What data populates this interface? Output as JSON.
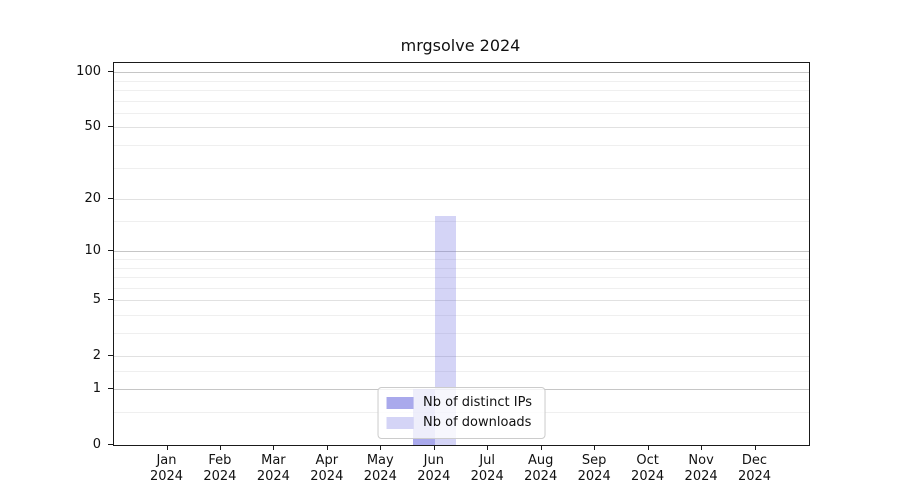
{
  "title": "mrgsolve 2024",
  "chart_data": {
    "type": "bar",
    "title": "mrgsolve 2024",
    "scale": "log1p",
    "grid": true,
    "legend_position": "lower center",
    "categories": [
      "Jan",
      "Feb",
      "Mar",
      "Apr",
      "May",
      "Jun",
      "Jul",
      "Aug",
      "Sep",
      "Oct",
      "Nov",
      "Dec"
    ],
    "year": "2024",
    "series": [
      {
        "name": "Nb of distinct IPs",
        "color": "rgba(102,102,221,0.56)",
        "values": [
          0,
          0,
          0,
          0,
          0,
          1,
          0,
          0,
          0,
          0,
          0,
          0
        ]
      },
      {
        "name": "Nb of downloads",
        "color": "rgba(102,102,221,0.28)",
        "values": [
          0,
          0,
          0,
          0,
          0,
          16,
          0,
          0,
          0,
          0,
          0,
          0
        ]
      }
    ],
    "yticks": [
      0,
      1,
      2,
      5,
      10,
      20,
      50,
      100
    ],
    "decade_lines": [
      1,
      10,
      100
    ],
    "labeled_lines": [
      2,
      5,
      20,
      50
    ],
    "minor_lines": [
      0.5,
      1.5,
      3,
      4,
      6,
      7,
      8,
      9,
      15,
      30,
      40,
      60,
      70,
      80,
      90
    ],
    "axis_top": 112,
    "ylim": [
      0,
      112
    ]
  },
  "colors": {
    "grid_minor": "#efefef",
    "grid_labeled": "#e1e1e1",
    "grid_decade": "#c6c6c6",
    "axis": "#1a1a1a",
    "background": "#ffffff",
    "legend_border": "#cccccc"
  }
}
